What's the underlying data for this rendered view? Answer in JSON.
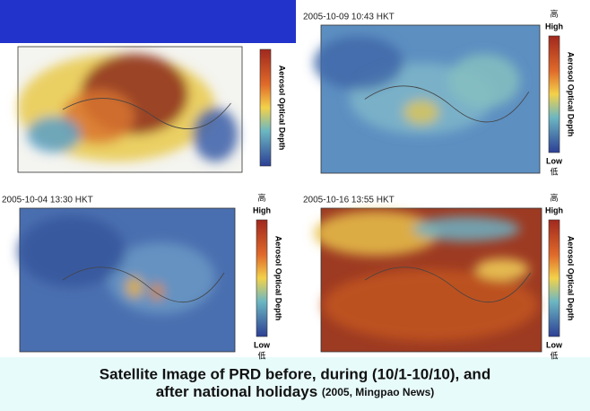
{
  "panels": [
    {
      "timestamp": null,
      "legend": {
        "label": "Aerosol Optical Depth"
      }
    },
    {
      "timestamp": "2005-10-09 10:43 HKT",
      "legend": {
        "high_cn": "高",
        "high": "High",
        "label": "Aerosol Optical Depth",
        "low": "Low",
        "low_cn": "低"
      }
    },
    {
      "timestamp": "2005-10-04 13:30 HKT",
      "legend": {
        "high_cn": "高",
        "high": "High",
        "label": "Aerosol Optical Depth",
        "low": "Low",
        "low_cn": "低"
      }
    },
    {
      "timestamp": "2005-10-16 13:55 HKT",
      "legend": {
        "high_cn": "高",
        "high": "High",
        "label": "Aerosol Optical Depth",
        "low": "Low",
        "low_cn": "低"
      }
    }
  ],
  "caption": {
    "line1": "Satellite Image of PRD before, during (10/1-10/10), and",
    "line2": "after national holidays",
    "source": "(2005, Mingpao News)"
  }
}
